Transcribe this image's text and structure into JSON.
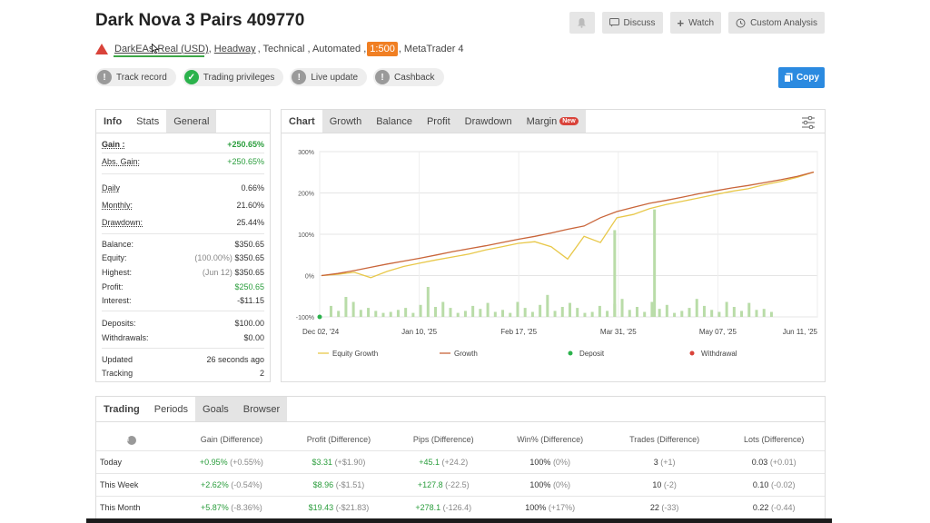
{
  "header": {
    "title": "Dark Nova 3 Pairs 409770",
    "buttons": {
      "discuss": "Discuss",
      "watch": "Watch",
      "custom": "Custom Analysis"
    },
    "sub": {
      "broker": "DarkEAs",
      "account": "Real (USD)",
      "server": "Headway",
      "rest1": ", Technical , Automated ,",
      "leverage": "1:500",
      "rest2": ", MetaTrader 4"
    },
    "badges": [
      "Track record",
      "Trading privileges",
      "Live update",
      "Cashback"
    ],
    "copy": "Copy"
  },
  "stats": {
    "tabs": [
      "Info",
      "Stats",
      "General"
    ],
    "rows": [
      {
        "k": "Gain :",
        "v": "+250.65%"
      },
      {
        "k": "Abs. Gain:",
        "v": "+250.65%"
      },
      {
        "k": "Daily",
        "v": "0.66%"
      },
      {
        "k": "Monthly:",
        "v": "21.60%"
      },
      {
        "k": "Drawdown:",
        "v": "25.44%"
      },
      {
        "k": "Balance:",
        "v": "$350.65"
      },
      {
        "k": "Equity:",
        "pre": "(100.00%)",
        "v": "$350.65"
      },
      {
        "k": "Highest:",
        "pre": "(Jun 12)",
        "v": "$350.65"
      },
      {
        "k": "Profit:",
        "v": "$250.65"
      },
      {
        "k": "Interest:",
        "v": "-$11.15"
      },
      {
        "k": "Deposits:",
        "v": "$100.00"
      },
      {
        "k": "Withdrawals:",
        "v": "$0.00"
      },
      {
        "k": "Updated",
        "v": "26 seconds ago"
      },
      {
        "k": "Tracking",
        "v": "2"
      }
    ]
  },
  "chart_tabs": [
    "Chart",
    "Growth",
    "Balance",
    "Profit",
    "Drawdown",
    "Margin"
  ],
  "new_tag": "New",
  "chart_data": {
    "type": "line",
    "y_ticks": [
      "300%",
      "200%",
      "100%",
      "0%",
      "-100%"
    ],
    "ylim": [
      -100,
      300
    ],
    "x_ticks": [
      "Dec 02, '24",
      "Jan 10, '25",
      "Feb 17, '25",
      "Mar 31, '25",
      "May 07, '25",
      "Jun 11, '25"
    ],
    "legend": [
      "Equity Growth",
      "Growth",
      "Deposit",
      "Withdrawal"
    ],
    "colors": {
      "equity": "#e8c84a",
      "growth": "#c9653a",
      "deposit": "#2bb24c",
      "withdrawal": "#d9433a",
      "bars": "#b9dca8"
    },
    "growth": [
      0,
      5,
      12,
      20,
      28,
      35,
      42,
      50,
      58,
      65,
      72,
      80,
      88,
      95,
      103,
      112,
      120,
      140,
      155,
      165,
      175,
      182,
      190,
      198,
      205,
      212,
      218,
      225,
      232,
      240,
      250.65
    ],
    "equity": [
      0,
      3,
      8,
      -5,
      10,
      22,
      30,
      38,
      45,
      52,
      62,
      70,
      78,
      82,
      70,
      40,
      95,
      80,
      140,
      148,
      162,
      172,
      180,
      188,
      196,
      204,
      210,
      220,
      228,
      238,
      250.65
    ],
    "bars": [
      22,
      12,
      40,
      30,
      14,
      18,
      12,
      8,
      10,
      14,
      18,
      8,
      24,
      60,
      20,
      30,
      18,
      8,
      12,
      22,
      16,
      28,
      10,
      14,
      8,
      30,
      18,
      10,
      24,
      44,
      12,
      20,
      28,
      18,
      8,
      10,
      22,
      12,
      26,
      36,
      14,
      20,
      10,
      30,
      16,
      24,
      8,
      12,
      18,
      36,
      22,
      14,
      10,
      30,
      20,
      12,
      28,
      14,
      16,
      10
    ],
    "bar_x": [
      0.02,
      0.035,
      0.05,
      0.065,
      0.08,
      0.095,
      0.11,
      0.125,
      0.14,
      0.155,
      0.17,
      0.185,
      0.2,
      0.215,
      0.23,
      0.245,
      0.26,
      0.275,
      0.29,
      0.305,
      0.32,
      0.335,
      0.35,
      0.365,
      0.38,
      0.395,
      0.41,
      0.425,
      0.44,
      0.455,
      0.47,
      0.485,
      0.5,
      0.515,
      0.53,
      0.545,
      0.56,
      0.575,
      0.59,
      0.605,
      0.62,
      0.635,
      0.65,
      0.665,
      0.68,
      0.695,
      0.71,
      0.725,
      0.74,
      0.755,
      0.77,
      0.785,
      0.8,
      0.815,
      0.83,
      0.845,
      0.86,
      0.875,
      0.89,
      0.905
    ],
    "spikes": [
      {
        "at": 0.59,
        "v": 110
      },
      {
        "at": 0.67,
        "v": 160
      }
    ]
  },
  "trading": {
    "tabs": [
      "Trading",
      "Periods",
      "Goals",
      "Browser"
    ],
    "headers": [
      "Gain (Difference)",
      "Profit (Difference)",
      "Pips (Difference)",
      "Win% (Difference)",
      "Trades (Difference)",
      "Lots (Difference)"
    ],
    "rows": [
      {
        "label": "Today",
        "c": [
          [
            "+0.95%",
            "(+0.55%)"
          ],
          [
            "$3.31",
            "(+$1.90)"
          ],
          [
            "+45.1",
            "(+24.2)"
          ],
          [
            "100%",
            "(0%)"
          ],
          [
            "3",
            "(+1)"
          ],
          [
            "0.03",
            "(+0.01)"
          ]
        ]
      },
      {
        "label": "This Week",
        "c": [
          [
            "+2.62%",
            "(-0.54%)"
          ],
          [
            "$8.96",
            "(-$1.51)"
          ],
          [
            "+127.8",
            "(-22.5)"
          ],
          [
            "100%",
            "(0%)"
          ],
          [
            "10",
            "(-2)"
          ],
          [
            "0.10",
            "(-0.02)"
          ]
        ]
      },
      {
        "label": "This Month",
        "c": [
          [
            "+5.87%",
            "(-8.36%)"
          ],
          [
            "$19.43",
            "(-$21.83)"
          ],
          [
            "+278.1",
            "(-126.4)"
          ],
          [
            "100%",
            "(+17%)"
          ],
          [
            "22",
            "(-33)"
          ],
          [
            "0.22",
            "(-0.44)"
          ]
        ]
      }
    ]
  }
}
